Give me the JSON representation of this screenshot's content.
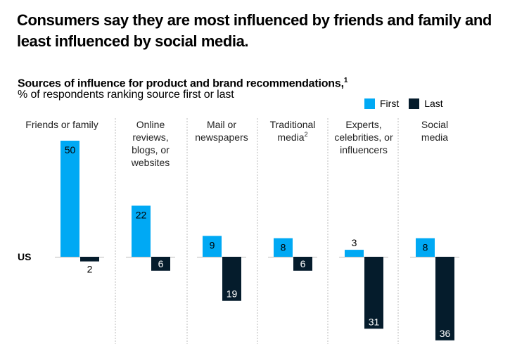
{
  "title": "Consumers say they are most influenced by friends and family and least influenced by social media.",
  "subtitle": "Sources of influence for product and brand recommendations,",
  "subtitle_footnote": "1",
  "subtitle2": "% of respondents ranking source first or last",
  "chart_data": {
    "type": "bar",
    "row_label": "US",
    "categories": [
      {
        "lines": [
          "Friends or family"
        ],
        "footnote": ""
      },
      {
        "lines": [
          "Online",
          "reviews,",
          "blogs, or",
          "websites"
        ],
        "footnote": ""
      },
      {
        "lines": [
          "Mail or",
          "newspapers"
        ],
        "footnote": ""
      },
      {
        "lines": [
          "Traditional",
          "media"
        ],
        "footnote": "2"
      },
      {
        "lines": [
          "Experts,",
          "celebrities, or",
          "influencers"
        ],
        "footnote": ""
      },
      {
        "lines": [
          "Social",
          "media"
        ],
        "footnote": ""
      }
    ],
    "series": [
      {
        "name": "First",
        "color": "#00a9f4",
        "values": [
          50,
          22,
          9,
          8,
          3,
          8
        ],
        "direction": "up"
      },
      {
        "name": "Last",
        "color": "#051c2c",
        "values": [
          2,
          6,
          19,
          6,
          31,
          36
        ],
        "direction": "down"
      }
    ],
    "legend": "top-right",
    "grid": false
  }
}
